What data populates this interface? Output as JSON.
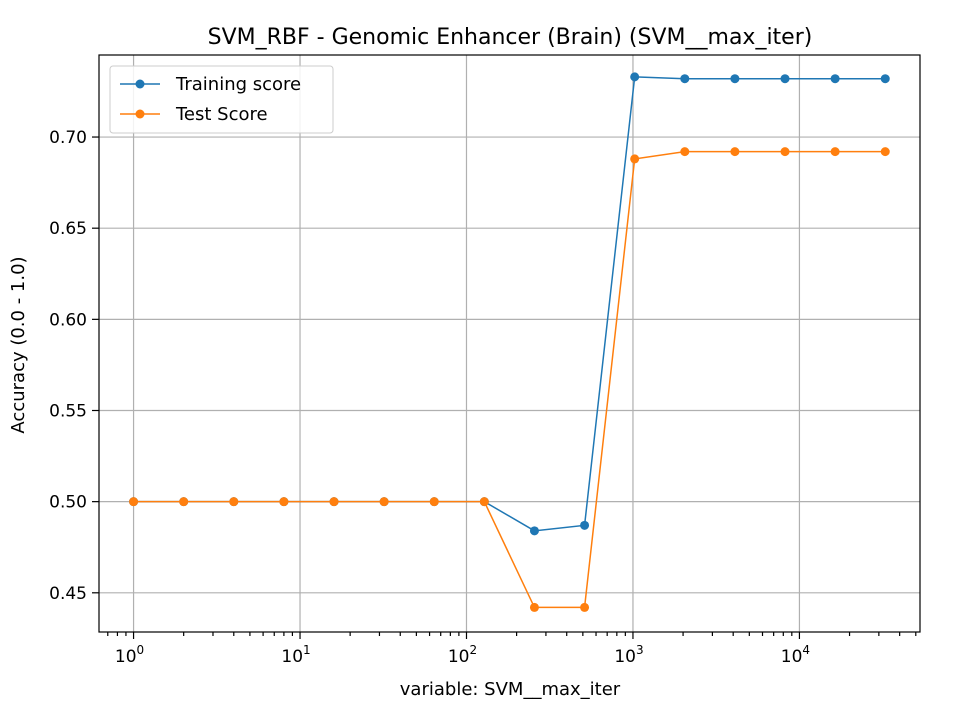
{
  "chart_data": {
    "type": "line",
    "title": "SVM_RBF - Genomic Enhancer (Brain) (SVM__max_iter)",
    "xlabel": "variable: SVM__max_iter",
    "ylabel": "Accuracy (0.0 - 1.0)",
    "x_scale": "log",
    "x": [
      1,
      2,
      4,
      8,
      16,
      32,
      64,
      128,
      256,
      512,
      1024,
      2048,
      4096,
      8192,
      16384,
      32768
    ],
    "xlim": [
      0.62,
      53000
    ],
    "ylim": [
      0.4285,
      0.745
    ],
    "x_ticks": [
      {
        "base": "10",
        "exp": "0",
        "value": 1
      },
      {
        "base": "10",
        "exp": "1",
        "value": 10
      },
      {
        "base": "10",
        "exp": "2",
        "value": 100
      },
      {
        "base": "10",
        "exp": "3",
        "value": 1000
      },
      {
        "base": "10",
        "exp": "4",
        "value": 10000
      }
    ],
    "y_ticks": [
      {
        "label": "0.45",
        "value": 0.45
      },
      {
        "label": "0.50",
        "value": 0.5
      },
      {
        "label": "0.55",
        "value": 0.55
      },
      {
        "label": "0.60",
        "value": 0.6
      },
      {
        "label": "0.65",
        "value": 0.65
      },
      {
        "label": "0.70",
        "value": 0.7
      }
    ],
    "grid": true,
    "legend_position": "top-left",
    "series": [
      {
        "name": "Training score",
        "color": "#1f77b4",
        "values": [
          0.5,
          0.5,
          0.5,
          0.5,
          0.5,
          0.5,
          0.5,
          0.5,
          0.484,
          0.487,
          0.733,
          0.732,
          0.732,
          0.732,
          0.732,
          0.732
        ]
      },
      {
        "name": "Test Score",
        "color": "#ff7f0e",
        "values": [
          0.5,
          0.5,
          0.5,
          0.5,
          0.5,
          0.5,
          0.5,
          0.5,
          0.442,
          0.442,
          0.688,
          0.692,
          0.692,
          0.692,
          0.692,
          0.692
        ]
      }
    ]
  }
}
